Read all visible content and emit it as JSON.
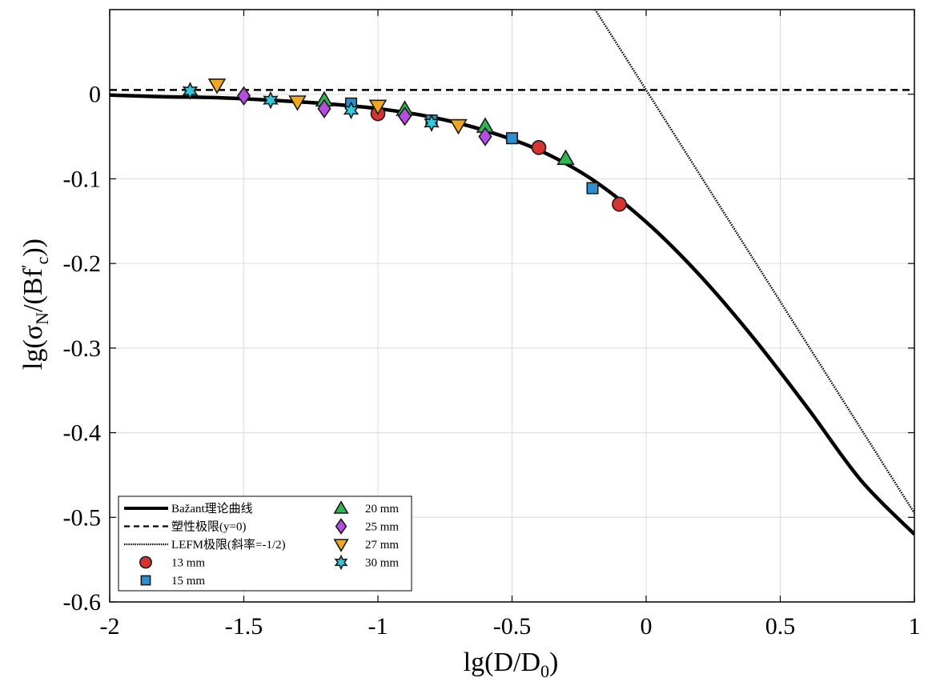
{
  "chart_data": {
    "type": "scatter",
    "xlim": [
      -2,
      1
    ],
    "ylim": [
      -0.6,
      0.1
    ],
    "grid": true,
    "legend_position": "bottom-left",
    "x_ticks": [
      {
        "value": -2,
        "label": "-2"
      },
      {
        "value": -1.5,
        "label": "-1.5"
      },
      {
        "value": -1,
        "label": "-1"
      },
      {
        "value": -0.5,
        "label": "-0.5"
      },
      {
        "value": 0,
        "label": "0"
      },
      {
        "value": 0.5,
        "label": "0.5"
      },
      {
        "value": 1,
        "label": "1"
      }
    ],
    "y_ticks": [
      {
        "value": 0,
        "label": "0"
      },
      {
        "value": -0.1,
        "label": "-0.1"
      },
      {
        "value": -0.2,
        "label": "-0.2"
      },
      {
        "value": -0.3,
        "label": "-0.3"
      },
      {
        "value": -0.4,
        "label": "-0.4"
      },
      {
        "value": -0.5,
        "label": "-0.5"
      },
      {
        "value": -0.6,
        "label": "-0.6"
      }
    ],
    "xlabel": {
      "base": "lg(D/D",
      "sub": "0",
      "end": ")"
    },
    "ylabel": {
      "p1": "lg(σ",
      "sub1": "N",
      "p2": "/(Bf",
      "sup": "′",
      "sub2": "c",
      "p3": "))"
    },
    "lines": [
      {
        "name": "Bažant理论曲线",
        "style": "solid",
        "color": "#000000",
        "x": [
          -2.0,
          -1.8,
          -1.6,
          -1.4,
          -1.2,
          -1.0,
          -0.8,
          -0.6,
          -0.4,
          -0.2,
          0.0,
          0.2,
          0.4,
          0.6,
          0.8,
          1.0
        ],
        "y": [
          -0.001,
          -0.003,
          -0.004,
          -0.007,
          -0.011,
          -0.017,
          -0.027,
          -0.043,
          -0.066,
          -0.101,
          -0.151,
          -0.214,
          -0.288,
          -0.37,
          -0.456,
          -0.52
        ]
      },
      {
        "name": "塑性极限(y=0)",
        "style": "dashed",
        "color": "#000000",
        "x": [
          -2,
          1
        ],
        "y": [
          0.005,
          0.005
        ]
      },
      {
        "name": "LEFM极限(斜率=-1/2)",
        "style": "dotted",
        "color": "#000000",
        "x": [
          -0.2,
          1.0
        ],
        "y": [
          0.105,
          -0.495
        ]
      }
    ],
    "series": [
      {
        "name": "13 mm",
        "marker": "circle",
        "color": "#d63333",
        "points": [
          [
            -1.0,
            -0.023
          ],
          [
            -0.4,
            -0.063
          ],
          [
            -0.1,
            -0.13
          ]
        ]
      },
      {
        "name": "15 mm",
        "marker": "square",
        "color": "#2d8fd0",
        "points": [
          [
            -1.1,
            -0.011
          ],
          [
            -0.8,
            -0.031
          ],
          [
            -0.5,
            -0.052
          ],
          [
            -0.2,
            -0.111
          ]
        ]
      },
      {
        "name": "20 mm",
        "marker": "triangle-up",
        "color": "#2db851",
        "points": [
          [
            -1.2,
            -0.007
          ],
          [
            -0.9,
            -0.018
          ],
          [
            -0.6,
            -0.038
          ],
          [
            -0.3,
            -0.076
          ]
        ]
      },
      {
        "name": "25 mm",
        "marker": "diamond",
        "color": "#b44de0",
        "points": [
          [
            -1.5,
            -0.002
          ],
          [
            -1.2,
            -0.017
          ],
          [
            -0.9,
            -0.026
          ],
          [
            -0.6,
            -0.05
          ]
        ]
      },
      {
        "name": "27 mm",
        "marker": "triangle-down",
        "color": "#f0a820",
        "points": [
          [
            -1.6,
            0.011
          ],
          [
            -1.3,
            -0.009
          ],
          [
            -1.0,
            -0.014
          ],
          [
            -0.7,
            -0.037
          ]
        ]
      },
      {
        "name": "30 mm",
        "marker": "hexagram",
        "color": "#36c8d8",
        "points": [
          [
            -1.7,
            0.004
          ],
          [
            -1.4,
            -0.007
          ],
          [
            -1.1,
            -0.019
          ],
          [
            -0.8,
            -0.034
          ]
        ]
      }
    ]
  }
}
